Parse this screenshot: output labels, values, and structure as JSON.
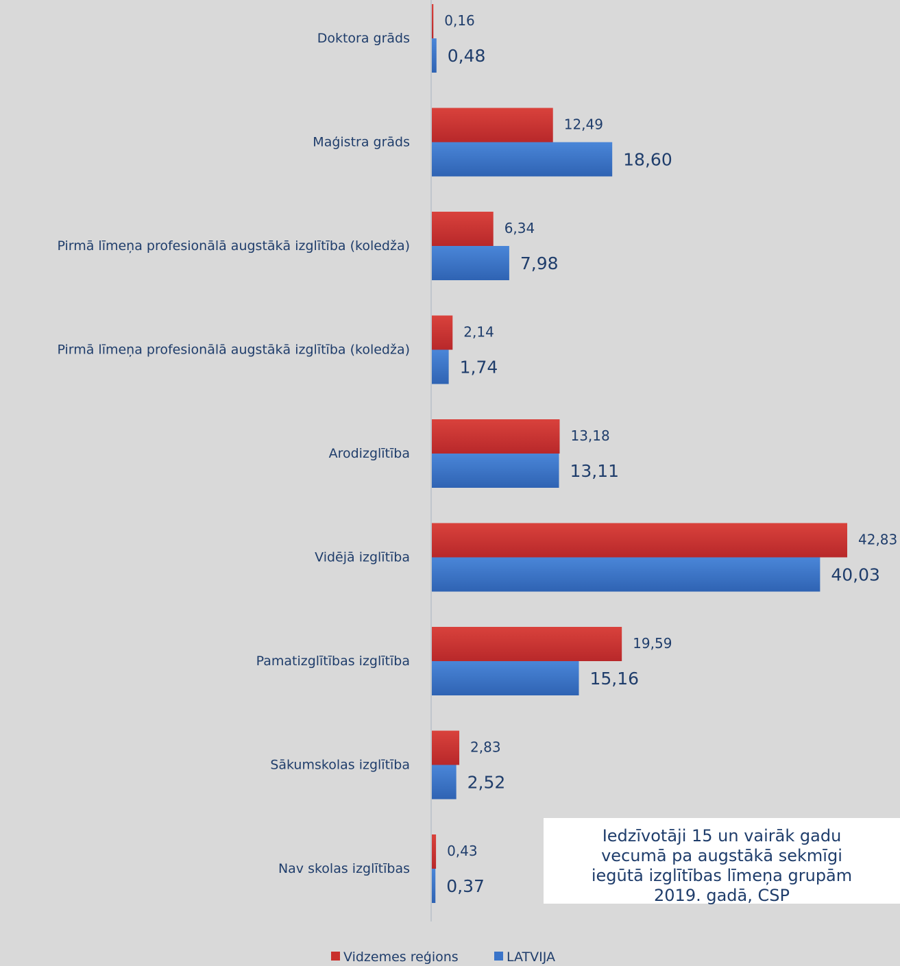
{
  "chart_data": {
    "type": "bar",
    "orientation": "horizontal",
    "categories": [
      "Doktora grāds",
      "Maģistra grāds",
      "Pirmā līmeņa profesionālā augstākā izglītība (koledža)",
      "Pirmā līmeņa profesionālā augstākā izglītība (koledža)",
      "Arodizglītība",
      "Vidējā izglītība",
      "Pamatizglītības izglītība",
      "Sākumskolas izglītība",
      "Nav skolas izglītības"
    ],
    "series": [
      {
        "name": "Vidzemes reģions",
        "color": "#c9302c",
        "values": [
          0.16,
          12.49,
          6.34,
          2.14,
          13.18,
          42.83,
          19.59,
          2.83,
          0.43
        ],
        "labels": [
          "0,16",
          "12,49",
          "6,34",
          "2,14",
          "13,18",
          "42,83",
          "19,59",
          "2,83",
          "0,43"
        ]
      },
      {
        "name": "LATVIJA",
        "color": "#3a74c9",
        "values": [
          0.48,
          18.6,
          7.98,
          1.74,
          13.11,
          40.03,
          15.16,
          2.52,
          0.37
        ],
        "labels": [
          "0,48",
          "18,60",
          "7,98",
          "1,74",
          "13,11",
          "40,03",
          "15,16",
          "2,52",
          "0,37"
        ]
      }
    ],
    "xlim": [
      0,
      45
    ],
    "legend": "bottom",
    "grid": false
  },
  "caption": {
    "lines": [
      "Iedzīvotāji 15 un vairāk gadu",
      "vecumā pa augstākā sekmīgi",
      "iegūtā izglītības līmeņa grupām",
      "2019. gadā, CSP"
    ]
  }
}
